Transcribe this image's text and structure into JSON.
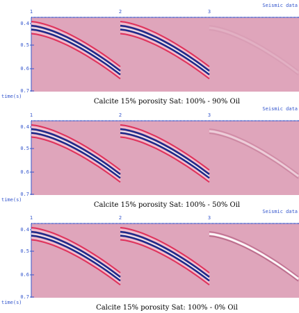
{
  "panels": [
    {
      "header": "Seismic data",
      "trace_labels": [
        "1",
        "2",
        "3"
      ],
      "time_labels": [
        "0.4",
        "0.5",
        "0.6",
        "0.7"
      ],
      "axis_label": "time(s)",
      "caption": "Calcite 15% porosity Sat: 100%  - 90% Oil"
    },
    {
      "header": "Seismic data",
      "trace_labels": [
        "1",
        "2",
        "3"
      ],
      "time_labels": [
        "0.4",
        "0.5",
        "0.6",
        "0.7"
      ],
      "axis_label": "time(s)",
      "caption": "Calcite 15% porosity Sat: 100%  - 50% Oil"
    },
    {
      "header": "Seismic data",
      "trace_labels": [
        "1",
        "2",
        "3"
      ],
      "time_labels": [
        "0.4",
        "0.5",
        "0.6",
        "0.7"
      ],
      "axis_label": "time(s)",
      "caption": "Calcite 15% porosity Sat: 100%  - 0% Oil"
    }
  ]
}
